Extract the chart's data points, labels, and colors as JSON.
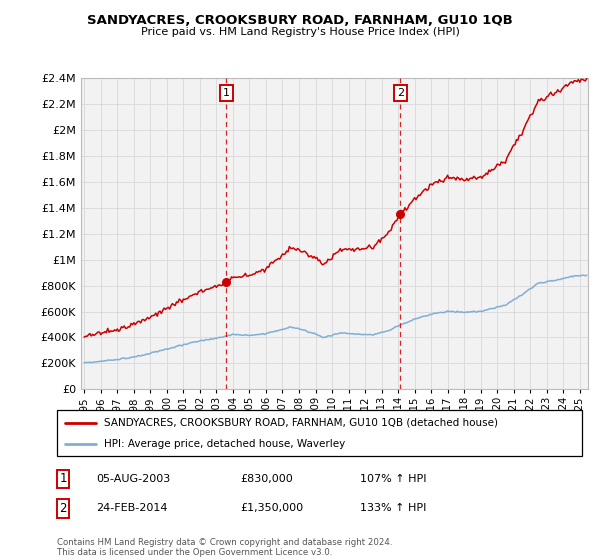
{
  "title": "SANDYACRES, CROOKSBURY ROAD, FARNHAM, GU10 1QB",
  "subtitle": "Price paid vs. HM Land Registry's House Price Index (HPI)",
  "legend_line1": "SANDYACRES, CROOKSBURY ROAD, FARNHAM, GU10 1QB (detached house)",
  "legend_line2": "HPI: Average price, detached house, Waverley",
  "sale1_date": "05-AUG-2003",
  "sale1_price": "£830,000",
  "sale1_hpi": "107% ↑ HPI",
  "sale1_year": 2003.59,
  "sale1_value": 830000,
  "sale2_date": "24-FEB-2014",
  "sale2_price": "£1,350,000",
  "sale2_hpi": "133% ↑ HPI",
  "sale2_year": 2014.13,
  "sale2_value": 1350000,
  "copyright": "Contains HM Land Registry data © Crown copyright and database right 2024.\nThis data is licensed under the Open Government Licence v3.0.",
  "red_color": "#cc0000",
  "blue_color": "#7fafd4",
  "bg_color": "#ffffff",
  "grid_color": "#d8d8d8",
  "ylim_max": 2400000,
  "xlim_start": 1994.8,
  "xlim_end": 2025.5
}
